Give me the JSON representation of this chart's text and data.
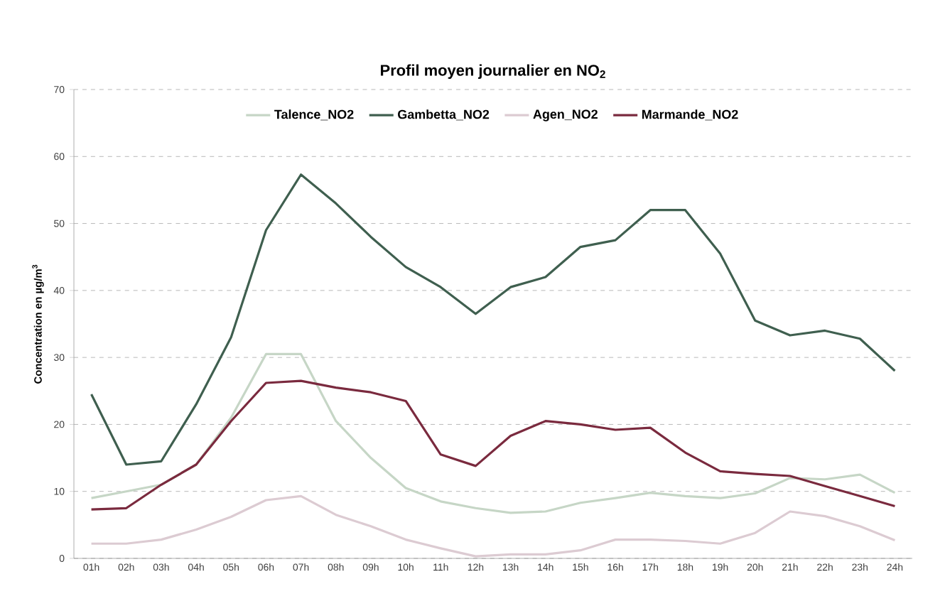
{
  "chart_data": {
    "type": "line",
    "title": "Profil moyen journalier en NO$_{2}$",
    "ylabel": "Concentration en µg/m$^{3}$",
    "categories": [
      "01h",
      "02h",
      "03h",
      "04h",
      "05h",
      "06h",
      "07h",
      "08h",
      "09h",
      "10h",
      "11h",
      "12h",
      "13h",
      "14h",
      "15h",
      "16h",
      "17h",
      "18h",
      "19h",
      "20h",
      "21h",
      "22h",
      "23h",
      "24h"
    ],
    "series": [
      {
        "name": "Talence_NO2",
        "color": "#c6d6c6",
        "values": [
          9,
          10,
          11,
          14,
          21,
          30.5,
          30.5,
          20.5,
          15,
          10.5,
          8.5,
          7.5,
          6.8,
          7,
          8.3,
          9,
          9.8,
          9.3,
          9,
          9.7,
          12,
          11.8,
          12.5,
          9.8
        ]
      },
      {
        "name": "Gambetta_NO2",
        "color": "#3f5f4f",
        "values": [
          24.5,
          14,
          14.5,
          23,
          33,
          49,
          57.3,
          53,
          48,
          43.5,
          40.5,
          36.5,
          40.5,
          42,
          46.5,
          47.5,
          52,
          52,
          45.5,
          35.5,
          33.3,
          34,
          32.8,
          28
        ]
      },
      {
        "name": "Agen_NO2",
        "color": "#dccbd2",
        "values": [
          2.2,
          2.2,
          2.8,
          4.3,
          6.2,
          8.7,
          9.3,
          6.5,
          4.8,
          2.8,
          1.5,
          0.3,
          0.6,
          0.6,
          1.2,
          2.8,
          2.8,
          2.6,
          2.2,
          3.8,
          7,
          6.3,
          4.8,
          2.7
        ]
      },
      {
        "name": "Marmande_NO2",
        "color": "#7a2a3e",
        "values": [
          7.3,
          7.5,
          11,
          14,
          20.5,
          26.2,
          26.5,
          25.5,
          24.8,
          23.5,
          15.5,
          13.8,
          18.3,
          20.5,
          20,
          19.2,
          19.5,
          15.8,
          13,
          12.6,
          12.3,
          10.8,
          9.3,
          7.8
        ]
      }
    ],
    "ylim": [
      0,
      70
    ],
    "yticks": [
      0,
      10,
      20,
      30,
      40,
      50,
      60,
      70
    ],
    "grid": "y",
    "legend": "top",
    "marker": "none",
    "line_style": "solid"
  }
}
